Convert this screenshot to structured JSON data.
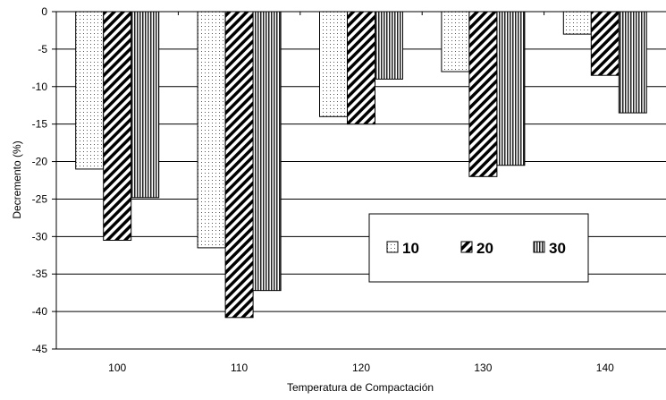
{
  "chart_data": {
    "type": "bar",
    "title": "",
    "xlabel": "Temperatura de Compactación",
    "ylabel": "Decremento (%)",
    "categories": [
      "100",
      "110",
      "120",
      "130",
      "140"
    ],
    "series": [
      {
        "name": "10",
        "pattern": "dots",
        "values": [
          -21,
          -31.5,
          -14,
          -8,
          -3
        ]
      },
      {
        "name": "20",
        "pattern": "diagonal-hatch",
        "values": [
          -30.5,
          -40.8,
          -15,
          -22,
          -8.5
        ]
      },
      {
        "name": "30",
        "pattern": "vertical-lines",
        "values": [
          -24.8,
          -37.2,
          -9,
          -20.5,
          -13.5
        ]
      }
    ],
    "ylim": [
      -45,
      0
    ],
    "yticks": [
      "0",
      "-5",
      "-10",
      "-15",
      "-20",
      "-25",
      "-30",
      "-35",
      "-40",
      "-45"
    ],
    "grid": true,
    "legend_position": "center-right"
  }
}
